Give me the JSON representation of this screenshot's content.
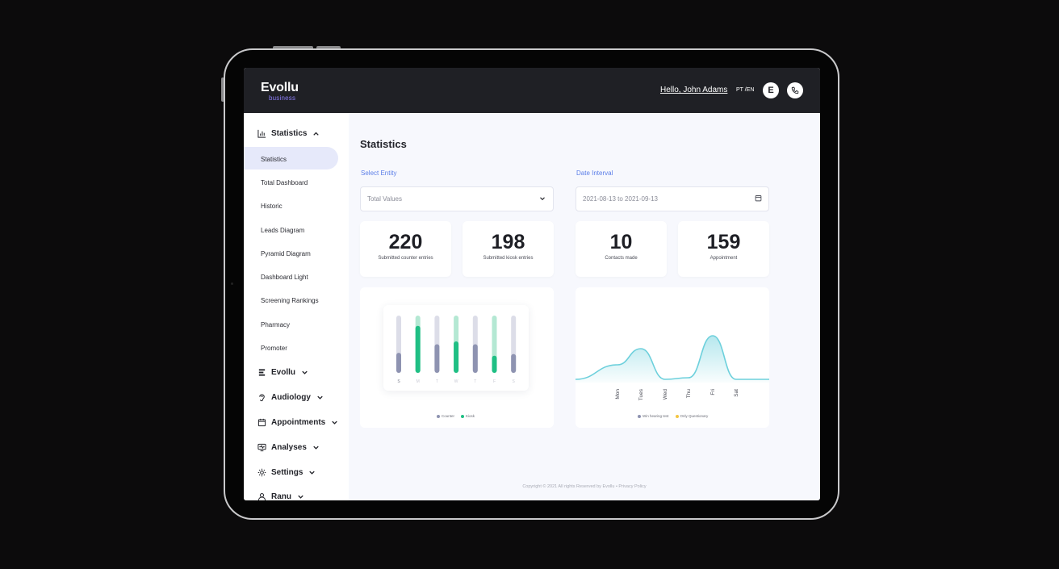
{
  "brand": {
    "name": "Evollu",
    "sub": "business"
  },
  "header": {
    "greeting": "Hello, John Adams",
    "lang": "PT /EN",
    "avatar_letter": "E"
  },
  "sidebar": {
    "statistics_group": "Statistics",
    "statistics_items": [
      "Statistics",
      "Total Dashboard",
      "Historic",
      "Leads Diagram",
      "Pyramid Diagram",
      "Dashboard Light",
      "Screening Rankings",
      "Pharmacy",
      "Promoter"
    ],
    "groups": [
      "Evollu",
      "Audiology",
      "Appointments",
      "Analyses",
      "Settings",
      "Ranu"
    ]
  },
  "main": {
    "title": "Statistics",
    "entity_label": "Select Entity",
    "entity_value": "Total Values",
    "date_label": "Date Interval",
    "date_value": "2021-08-13 to 2021-09-13"
  },
  "kpis": [
    {
      "value": "220",
      "label": "Submitted counter entries"
    },
    {
      "value": "198",
      "label": "Submitted kiosk entries"
    },
    {
      "value": "10",
      "label": "Contacts made"
    },
    {
      "value": "159",
      "label": "Appointment"
    }
  ],
  "footer": {
    "text": "Copyright © 2021 All rights Reserved by Evollu • Privacy Policy"
  },
  "colors": {
    "accent": "#5b7ee8",
    "green": "#1fbf84",
    "gray_bar": "#8e93b1",
    "wave": "#6dd0dc"
  },
  "chart_data": [
    {
      "type": "bar",
      "categories": [
        "S",
        "M",
        "T",
        "W",
        "T",
        "F",
        "S"
      ],
      "ylim": [
        0,
        100
      ],
      "series": [
        {
          "name": "Counter",
          "values": [
            35,
            82,
            50,
            55,
            50,
            30,
            33
          ]
        },
        {
          "name": "Kiosk",
          "values": [
            35,
            82,
            50,
            55,
            50,
            30,
            33
          ]
        }
      ],
      "legend": "bottom"
    },
    {
      "type": "area",
      "categories": [
        "Mon",
        "Tues",
        "Wed",
        "Thu",
        "Fri",
        "Sat"
      ],
      "ylim": [
        0,
        100
      ],
      "series": [
        {
          "name": "Win hearing test",
          "values": [
            22,
            42,
            4,
            6,
            58,
            4
          ]
        }
      ],
      "legend_entries": [
        "Win hearing test",
        "Only Questionary"
      ],
      "legend": "bottom"
    }
  ]
}
